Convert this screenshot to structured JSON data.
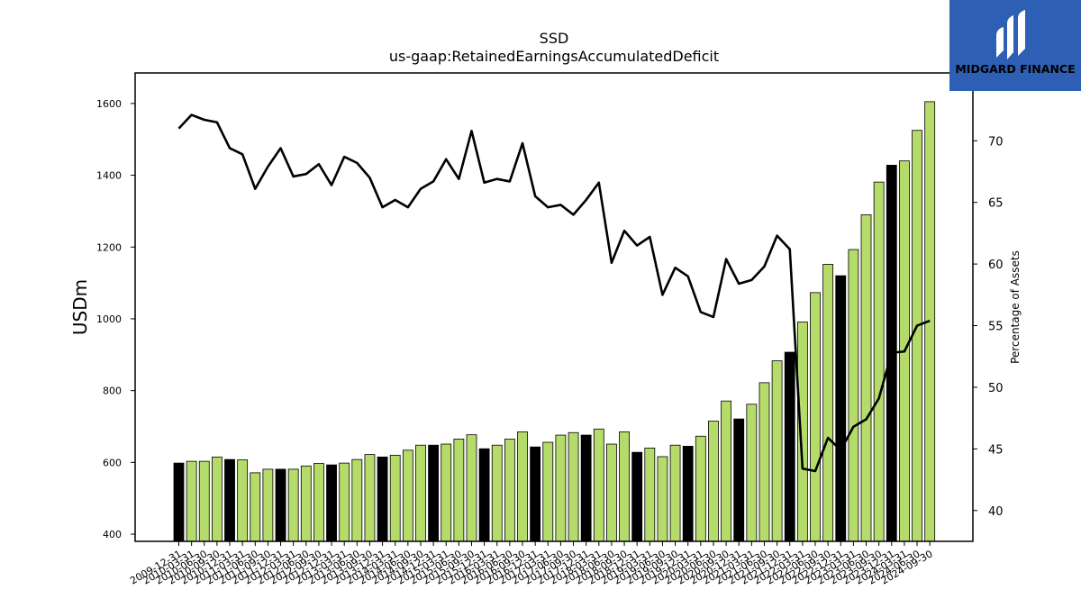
{
  "chart_data": {
    "type": "bar",
    "title": "SSD",
    "subtitle": "us-gaap:RetainedEarningsAccumulatedDeficit",
    "ylabel": "USDm",
    "y2label": "Percentage of Assets",
    "ylim": [
      380,
      1685
    ],
    "y2lim": [
      37.5,
      75.5
    ],
    "yticks": [
      400,
      600,
      800,
      1000,
      1200,
      1400,
      1600
    ],
    "y2ticks": [
      40,
      45,
      50,
      55,
      60,
      65,
      70
    ],
    "xtick_labels": [
      "2009-12-31",
      "2010-03-31",
      "2010-06-30",
      "2010-09-30",
      "2010-12-31",
      "2011-03-31",
      "2011-06-30",
      "2011-09-30",
      "2011-12-31",
      "2012-03-31",
      "2012-06-30",
      "2012-09-30",
      "2012-12-31",
      "2013-03-31",
      "2013-06-30",
      "2013-09-30",
      "2013-12-31",
      "2014-03-31",
      "2014-06-30",
      "2014-09-30",
      "2014-12-31",
      "2015-03-31",
      "2015-06-30",
      "2015-09-30",
      "2015-12-31",
      "2016-03-31",
      "2016-06-30",
      "2016-09-30",
      "2016-12-31",
      "2017-03-31",
      "2017-06-30",
      "2017-09-30",
      "2017-12-31",
      "2018-03-31",
      "2018-06-30",
      "2018-09-30",
      "2018-12-31",
      "2019-03-31",
      "2019-06-30",
      "2019-09-30",
      "2019-12-31",
      "2020-03-31",
      "2020-06-30",
      "2020-09-30",
      "2020-12-31",
      "2021-03-31",
      "2021-06-30",
      "2021-09-30",
      "2021-12-31",
      "2022-03-31",
      "2022-06-30",
      "2022-09-30",
      "2022-12-31",
      "2023-03-31",
      "2023-06-30",
      "2023-09-30",
      "2023-12-31",
      "2024-03-31",
      "2024-06-30",
      "2024-09-30"
    ],
    "categories": [
      "2009-12-31",
      "2010-03-31",
      "2010-06-30",
      "2010-09-30",
      "2010-12-31",
      "2011-03-31",
      "2011-06-30",
      "2011-09-30",
      "2011-12-31",
      "2012-03-31",
      "2012-06-30",
      "2012-09-30",
      "2012-12-31",
      "2013-03-31",
      "2013-06-30",
      "2013-09-30",
      "2013-12-31",
      "2014-03-31",
      "2014-06-30",
      "2014-09-30",
      "2014-12-31",
      "2015-03-31",
      "2015-06-30",
      "2015-09-30",
      "2015-12-31",
      "2016-03-31",
      "2016-06-30",
      "2016-09-30",
      "2016-12-31",
      "2017-03-31",
      "2017-06-30",
      "2017-09-30",
      "2017-12-31",
      "2018-03-31",
      "2018-06-30",
      "2018-09-30",
      "2018-12-31",
      "2019-03-31",
      "2019-06-30",
      "2019-09-30",
      "2019-12-31",
      "2020-03-31",
      "2020-06-30",
      "2020-09-30",
      "2020-12-31",
      "2021-03-31",
      "2021-06-30",
      "2021-09-30",
      "2021-12-31",
      "2022-03-31",
      "2022-06-30",
      "2022-09-30",
      "2022-12-31",
      "2023-03-31",
      "2023-06-30",
      "2023-09-30",
      "2023-12-31",
      "2024-03-31",
      "2024-06-30",
      "2024-09-30"
    ],
    "series": [
      {
        "axis": "left",
        "kind": "bar",
        "values": [
          598,
          603,
          603,
          615,
          608,
          607,
          571,
          581,
          581,
          581,
          590,
          597,
          593,
          598,
          608,
          622,
          615,
          620,
          634,
          648,
          648,
          651,
          665,
          677,
          638,
          648,
          665,
          685,
          643,
          656,
          676,
          683,
          676,
          693,
          651,
          685,
          628,
          640,
          616,
          648,
          645,
          673,
          715,
          771,
          721,
          762,
          822,
          883,
          907,
          991,
          1073,
          1152,
          1120,
          1193,
          1290,
          1381,
          1428,
          1440,
          1525,
          1605
        ],
        "is_year_end": [
          true,
          false,
          false,
          false,
          true,
          false,
          false,
          false,
          true,
          false,
          false,
          false,
          true,
          false,
          false,
          false,
          true,
          false,
          false,
          false,
          true,
          false,
          false,
          false,
          true,
          false,
          false,
          false,
          true,
          false,
          false,
          false,
          true,
          false,
          false,
          false,
          true,
          false,
          false,
          false,
          true,
          false,
          false,
          false,
          true,
          false,
          false,
          false,
          true,
          false,
          false,
          false,
          true,
          false,
          false,
          false,
          true,
          false,
          false,
          false
        ]
      },
      {
        "axis": "right",
        "kind": "line",
        "values": [
          71.0,
          72.1,
          71.7,
          71.5,
          69.4,
          68.9,
          66.1,
          67.9,
          69.4,
          67.1,
          67.3,
          68.1,
          66.4,
          68.7,
          68.2,
          67.0,
          64.6,
          65.2,
          64.6,
          66.1,
          66.7,
          68.5,
          66.9,
          70.8,
          66.6,
          66.9,
          66.7,
          69.8,
          65.5,
          64.6,
          64.8,
          64.0,
          65.2,
          66.6,
          60.1,
          62.7,
          61.5,
          62.2,
          57.5,
          59.7,
          59.0,
          56.1,
          55.7,
          60.4,
          58.4,
          58.7,
          59.8,
          62.3,
          61.2,
          43.4,
          43.2,
          45.9,
          44.9,
          46.8,
          47.4,
          49.1,
          52.8,
          52.9,
          55.0,
          55.4
        ]
      }
    ],
    "colors": {
      "bar_fill": "#b5dc6a",
      "bar_year_end_fill": "#000000",
      "bar_edge": "#000000",
      "line": "#000000",
      "badge_bg": "#2d5fb4",
      "badge_text": "#ffffff"
    },
    "grid": false,
    "legend": "none"
  },
  "branding": {
    "name": "MIDGARD FINANCE"
  }
}
